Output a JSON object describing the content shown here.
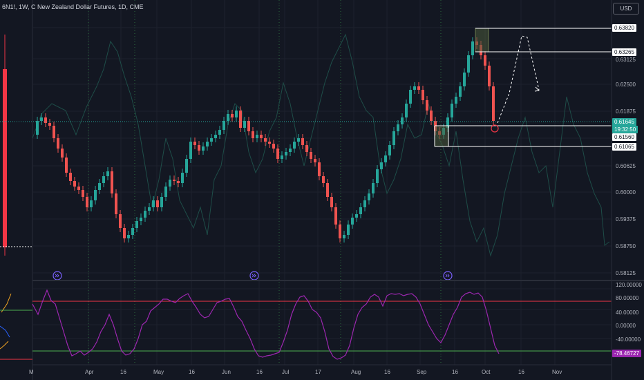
{
  "header": {
    "left_symbol": "6N1!, 1W, C",
    "main_title": "New Zealand Dollar Futures, 1D, CME"
  },
  "currency_button": "USD",
  "price_axis": [
    "0.63125",
    "0.62500",
    "0.61875",
    "0.60625",
    "0.60000",
    "0.59375",
    "0.58750",
    "0.58125"
  ],
  "price_tags": {
    "level_1": "0.63820",
    "level_2": "0.63265",
    "current_price": "0.61645",
    "countdown": "19:32:50",
    "level_3": "0.61560",
    "level_4": "0.61065"
  },
  "oscillator_axis": [
    "120.00000",
    "80.00000",
    "40.00000",
    "0.00000",
    "-40.00000"
  ],
  "oscillator_value": "-78.46727",
  "time_axis": [
    "Apr",
    "16",
    "May",
    "16",
    "Jun",
    "16",
    "Jul",
    "17",
    "Aug",
    "16",
    "Sep",
    "16",
    "Oct",
    "16",
    "Nov"
  ],
  "left_time_label": "M",
  "colors": {
    "background": "#131722",
    "bull": "#26a69a",
    "bear": "#ef5350",
    "oscillator_line": "#9c27b0",
    "overbought_line": "#f23645",
    "oversold_line": "#4caf50",
    "current_price_tag": "#26a69a",
    "oscillator_value_tag": "#9c27b0",
    "event_marker": "#5b5bff"
  }
}
